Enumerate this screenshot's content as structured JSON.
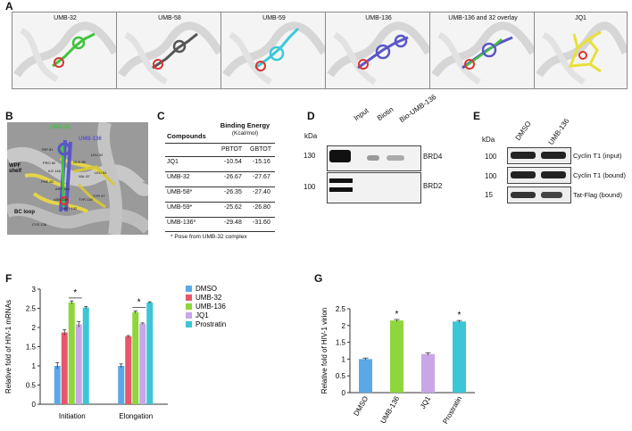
{
  "panels": {
    "A": "A",
    "B": "B",
    "C": "C",
    "D": "D",
    "E": "E",
    "F": "F",
    "G": "G"
  },
  "panel_a": {
    "titles": [
      "UMB-32",
      "UMB-58",
      "UMB-59",
      "UMB-136",
      "UMB-136 and 32 overlay",
      "JQ1"
    ],
    "colors": [
      "#3ec43e",
      "#555555",
      "#3cc8d8",
      "#5a56c8",
      "#5a56c8",
      "#e8e03a"
    ]
  },
  "panel_b": {
    "label_umb32": "UMB-32",
    "label_umb136": "UMB-136",
    "wpf_shelf": "WPF shelf",
    "bc_loop": "BC loop",
    "residues": [
      "TRP 81",
      "PRO 82",
      "PHE 83",
      "ILE 146",
      "GLN 85",
      "VAL 87",
      "LEU 92",
      "LEU 94",
      "TYR 97",
      "TYR 139",
      "ASN 140",
      "CYS 136",
      "ASP 144",
      "MET 132"
    ]
  },
  "panel_c": {
    "header_compounds": "Compounds",
    "header_be": "Binding Energy",
    "header_unit": "(Kcal/mol)",
    "col1": "PBTOT",
    "col2": "GBTOT",
    "rows": [
      {
        "name": "JQ1",
        "pb": "-10.54",
        "gb": "-15.16"
      },
      {
        "name": "UMB-32",
        "pb": "-26.67",
        "gb": "-27.67"
      },
      {
        "name": "UMB-58*",
        "pb": "-26.35",
        "gb": "-27.40"
      },
      {
        "name": "UMB-59*",
        "pb": "-25.62",
        "gb": "-26.80"
      },
      {
        "name": "UMB-136*",
        "pb": "-29.48",
        "gb": "-31.60"
      }
    ],
    "footnote": "* Pose from UMB-32 complex"
  },
  "panel_d": {
    "kda": "kDa",
    "lanes": [
      "Input",
      "Biotin",
      "Bio-UMB-136"
    ],
    "markers": [
      "130",
      "100"
    ],
    "bands": [
      "BRD4",
      "BRD2"
    ]
  },
  "panel_e": {
    "kda": "kDa",
    "lanes": [
      "DMSO",
      "UMB-136"
    ],
    "markers": [
      "100",
      "100",
      "15"
    ],
    "bands": [
      "Cyclin T1 (input)",
      "Cyclin T1 (bound)",
      "Tat-Flag (bound)"
    ]
  },
  "chart_data": [
    {
      "type": "bar",
      "ylabel": "Relative fold of HIV-1 mRNAs",
      "categories": [
        "Initiation",
        "Elongation"
      ],
      "ylim": [
        0,
        3
      ],
      "yticks": [
        "0",
        "0.5",
        "1",
        "1.5",
        "2",
        "2.5",
        "3"
      ],
      "series": [
        {
          "name": "DMSO",
          "color": "#5aa9e6",
          "values": [
            1.0,
            1.0
          ],
          "err": [
            0.08,
            0.05
          ]
        },
        {
          "name": "UMB-32",
          "color": "#e8566b",
          "values": [
            1.87,
            1.77
          ],
          "err": [
            0.07,
            0.02
          ]
        },
        {
          "name": "UMB-136",
          "color": "#8fd63c",
          "values": [
            2.65,
            2.4
          ],
          "err": [
            0.04,
            0.03
          ]
        },
        {
          "name": "JQ1",
          "color": "#c9a6e8",
          "values": [
            2.08,
            2.1
          ],
          "err": [
            0.07,
            0.02
          ]
        },
        {
          "name": "Prostratin",
          "color": "#3cc6d6",
          "values": [
            2.52,
            2.65
          ],
          "err": [
            0.03,
            0.02
          ]
        }
      ],
      "significance": [
        "*",
        "*"
      ]
    },
    {
      "type": "bar",
      "ylabel": "Relative fold of HIV-1 virion",
      "categories": [
        "DMSO",
        "UMB-136",
        "JQ1",
        "Prostratin"
      ],
      "ylim": [
        0,
        2.5
      ],
      "yticks": [
        "0",
        "0.5",
        "1",
        "1.5",
        "2",
        "2.5"
      ],
      "colors": [
        "#5aa9e6",
        "#8fd63c",
        "#c9a6e8",
        "#3cc6d6"
      ],
      "values": [
        1.0,
        2.15,
        1.15,
        2.12
      ],
      "err": [
        0.03,
        0.03,
        0.04,
        0.03
      ],
      "significance": [
        "",
        "*",
        "",
        "*"
      ]
    }
  ]
}
